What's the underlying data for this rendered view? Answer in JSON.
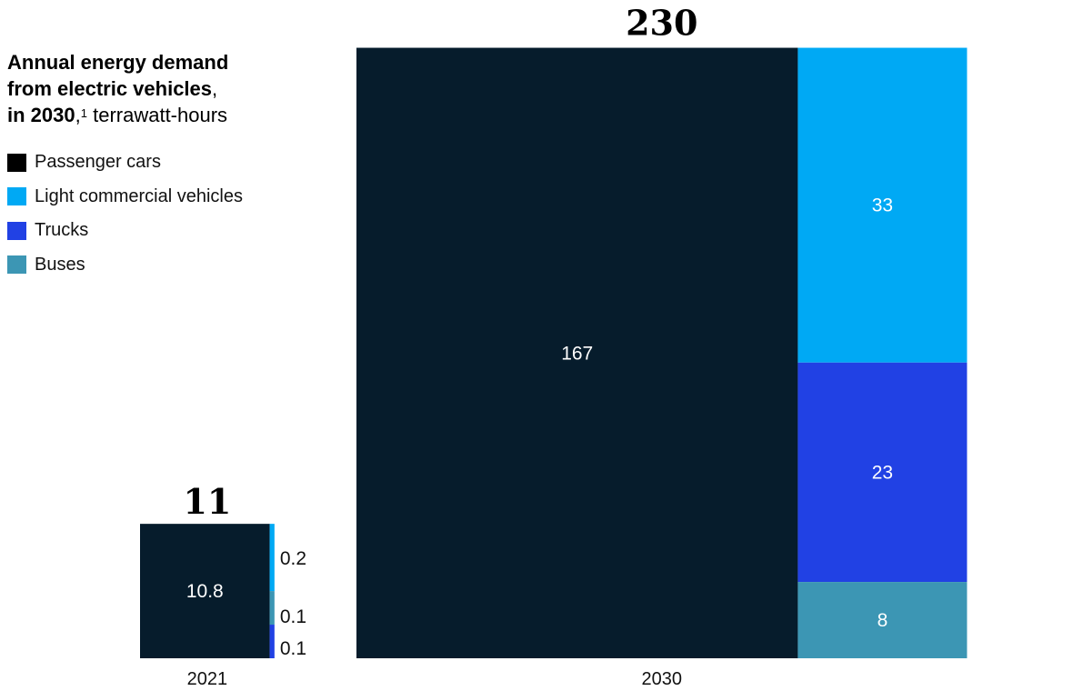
{
  "title": {
    "bold_lines": [
      "Annual energy demand",
      "from electric vehicles"
    ],
    "line3_bold": "in 2030",
    "line3_comma": ",",
    "footnote": "1",
    "unit": "terrawatt-hours",
    "line2_comma": ","
  },
  "legend": [
    {
      "label": "Passenger cars",
      "color": "#000000"
    },
    {
      "label": "Light commercial vehicles",
      "color": "#00a9f4"
    },
    {
      "label": "Trucks",
      "color": "#2141e4"
    },
    {
      "label": "Buses",
      "color": "#3c96b4"
    }
  ],
  "chart_data": {
    "type": "area",
    "subtype": "proportional-square treemap per year",
    "categories": [
      "2021",
      "2030"
    ],
    "totals": [
      "11",
      "230"
    ],
    "segments": {
      "2021": [
        {
          "series": "Passenger cars",
          "value": 10.8,
          "label": "10.8",
          "color": "#061c2c"
        },
        {
          "series": "Light commercial vehicles",
          "value": 0.2,
          "label": "0.2",
          "color": "#00a9f4"
        },
        {
          "series": "Buses",
          "value": 0.1,
          "label": "0.1",
          "color": "#3c96b4"
        },
        {
          "series": "Trucks",
          "value": 0.1,
          "label": "0.1",
          "color": "#2141e4"
        }
      ],
      "2030": [
        {
          "series": "Passenger cars",
          "value": 167,
          "label": "167",
          "color": "#061c2c"
        },
        {
          "series": "Light commercial vehicles",
          "value": 33,
          "label": "33",
          "color": "#00a9f4"
        },
        {
          "series": "Trucks",
          "value": 23,
          "label": "23",
          "color": "#2141e4"
        },
        {
          "series": "Buses",
          "value": 8,
          "label": "8",
          "color": "#3c96b4"
        }
      ]
    }
  }
}
